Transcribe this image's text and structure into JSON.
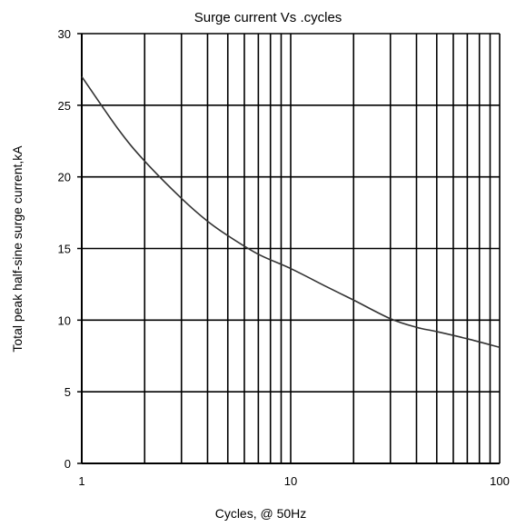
{
  "chart_data": {
    "type": "line",
    "title": "Surge current  Vs .cycles",
    "xlabel": "Cycles, @ 50Hz",
    "ylabel": "Total peak half-sine surge current,kA",
    "x_scale": "log",
    "xlim": [
      1,
      100
    ],
    "ylim": [
      0,
      30
    ],
    "x_ticks": [
      1,
      10,
      100
    ],
    "x_tick_labels": [
      "1",
      "10",
      "100"
    ],
    "y_ticks": [
      0,
      5,
      10,
      15,
      20,
      25,
      30
    ],
    "y_tick_labels": [
      "0",
      "5",
      "10",
      "15",
      "20",
      "25",
      "30"
    ],
    "grid": true,
    "legend": "none",
    "series": [
      {
        "x": [
          1,
          1.5,
          2,
          3,
          4,
          5,
          7,
          10,
          15,
          20,
          30,
          40,
          50,
          70,
          100
        ],
        "y": [
          27,
          23.3,
          21.1,
          18.5,
          16.9,
          15.9,
          14.6,
          13.6,
          12.3,
          11.4,
          10.1,
          9.5,
          9.2,
          8.7,
          8.1
        ]
      }
    ],
    "colors": {
      "line": "#333333",
      "grid": "#000000",
      "background": "#ffffff"
    }
  }
}
